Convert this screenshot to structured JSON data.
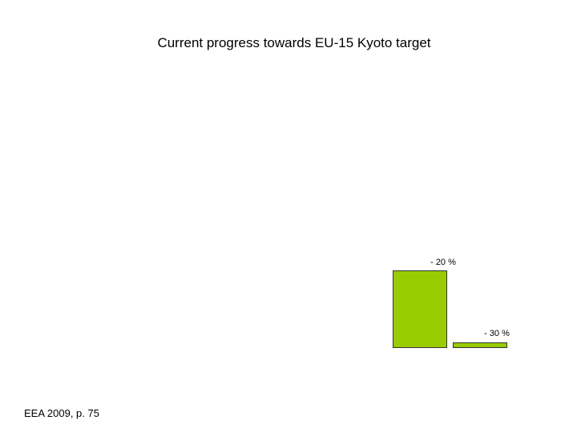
{
  "title": "Current progress towards EU‑15 Kyoto target",
  "labels": [
    "‑ 20 %",
    "‑ 30 %"
  ],
  "source": "EEA 2009, p. 75"
}
